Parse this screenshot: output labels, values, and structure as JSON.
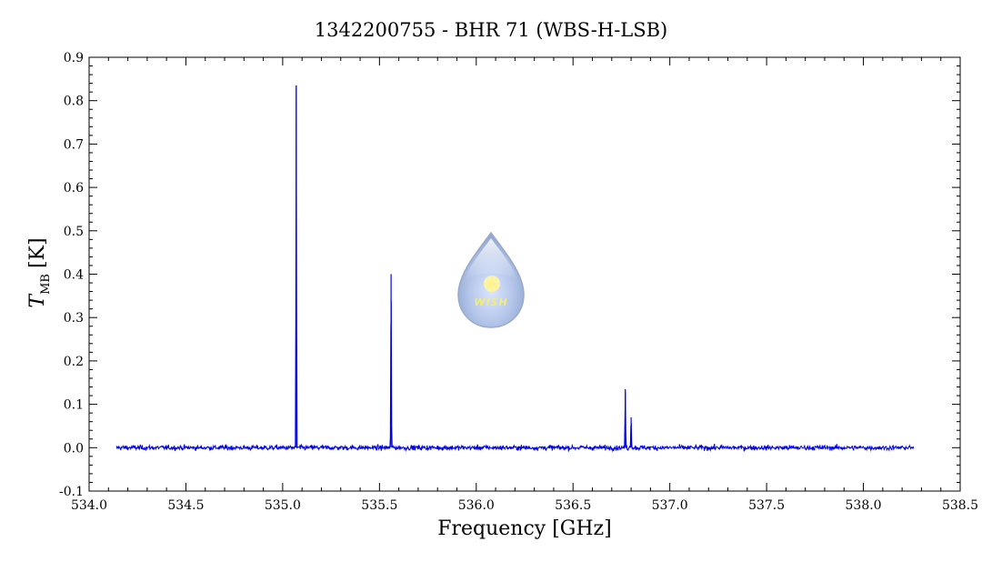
{
  "chart_data": {
    "type": "line",
    "title": "1342200755 - BHR 71 (WBS-H-LSB)",
    "xlabel": "Frequency [GHz]",
    "ylabel_symbol": "T",
    "ylabel_subscript": "MB",
    "ylabel_unit": "[K]",
    "xlim": [
      534.0,
      538.5
    ],
    "ylim": [
      -0.1,
      0.9
    ],
    "x_major_ticks": [
      534.0,
      534.5,
      535.0,
      535.5,
      536.0,
      536.5,
      537.0,
      537.5,
      538.0,
      538.5
    ],
    "x_tick_labels": [
      "534.0",
      "534.5",
      "535.0",
      "535.5",
      "536.0",
      "536.5",
      "537.0",
      "537.5",
      "538.0",
      "538.5"
    ],
    "y_major_ticks": [
      -0.1,
      0.0,
      0.1,
      0.2,
      0.3,
      0.4,
      0.5,
      0.6,
      0.7,
      0.8,
      0.9
    ],
    "y_tick_labels": [
      "-0.1",
      "0.0",
      "0.1",
      "0.2",
      "0.3",
      "0.4",
      "0.5",
      "0.6",
      "0.7",
      "0.8",
      "0.9"
    ],
    "grid": false,
    "series": [
      {
        "color": "#0000e6",
        "x_range": [
          534.14,
          538.26
        ],
        "baseline": 0.0,
        "noise_rms": 0.004,
        "peaks": [
          {
            "x": 535.07,
            "y": 0.835
          },
          {
            "x": 535.56,
            "y": 0.4
          },
          {
            "x": 536.77,
            "y": 0.135
          },
          {
            "x": 536.8,
            "y": 0.07
          }
        ]
      }
    ]
  },
  "logo": {
    "text": "WISH",
    "icon": "wish-droplet-logo"
  }
}
